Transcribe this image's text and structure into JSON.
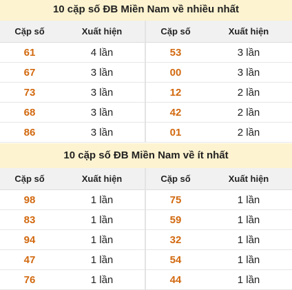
{
  "most": {
    "title": "10 cặp số ĐB Miền Nam về nhiều nhất",
    "headers": {
      "pair": "Cặp số",
      "count": "Xuất hiện"
    },
    "left": [
      {
        "pair": "61",
        "count": "4 lần"
      },
      {
        "pair": "67",
        "count": "3 lần"
      },
      {
        "pair": "73",
        "count": "3 lần"
      },
      {
        "pair": "68",
        "count": "3 lần"
      },
      {
        "pair": "86",
        "count": "3 lần"
      }
    ],
    "right": [
      {
        "pair": "53",
        "count": "3 lần"
      },
      {
        "pair": "00",
        "count": "3 lần"
      },
      {
        "pair": "12",
        "count": "2 lần"
      },
      {
        "pair": "42",
        "count": "2 lần"
      },
      {
        "pair": "01",
        "count": "2 lần"
      }
    ]
  },
  "least": {
    "title": "10 cặp số ĐB Miền Nam về ít nhất",
    "headers": {
      "pair": "Cặp số",
      "count": "Xuất hiện"
    },
    "left": [
      {
        "pair": "98",
        "count": "1 lần"
      },
      {
        "pair": "83",
        "count": "1 lần"
      },
      {
        "pair": "94",
        "count": "1 lần"
      },
      {
        "pair": "47",
        "count": "1 lần"
      },
      {
        "pair": "76",
        "count": "1 lần"
      }
    ],
    "right": [
      {
        "pair": "75",
        "count": "1 lần"
      },
      {
        "pair": "59",
        "count": "1 lần"
      },
      {
        "pair": "32",
        "count": "1 lần"
      },
      {
        "pair": "54",
        "count": "1 lần"
      },
      {
        "pair": "44",
        "count": "1 lần"
      }
    ]
  },
  "colors": {
    "title_bg": "#fdf3d0",
    "header_bg": "#f1f1f1",
    "pair_text": "#d2690f"
  }
}
